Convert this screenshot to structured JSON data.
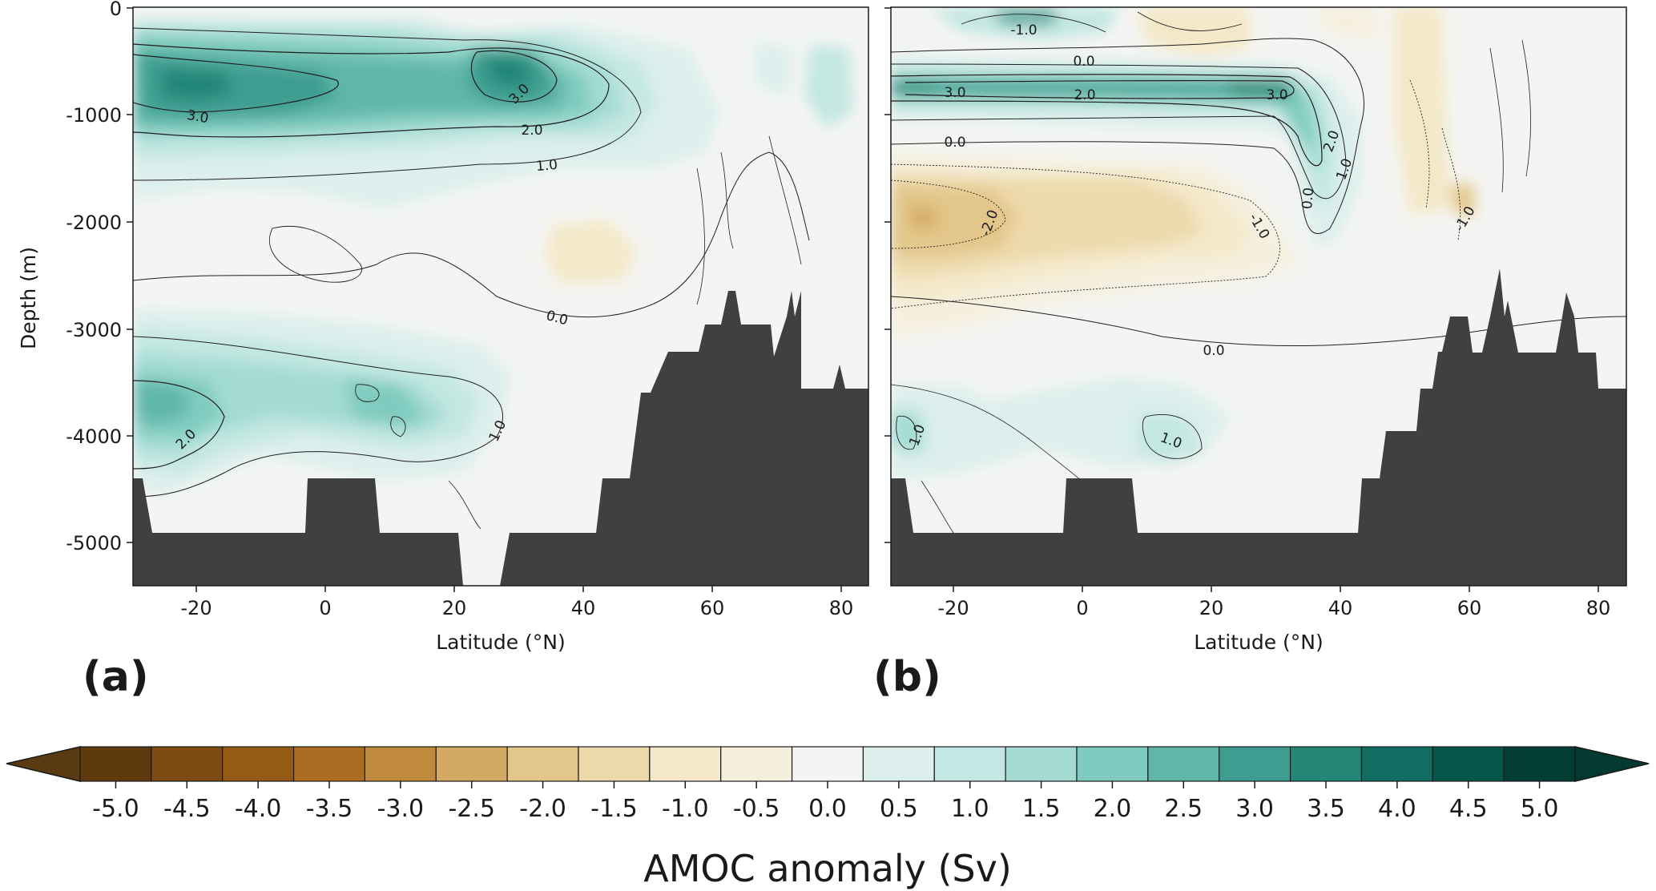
{
  "chart_data": [
    {
      "type": "contourf",
      "panel_label": "(a)",
      "xlabel": "Latitude (°N)",
      "ylabel": "Depth (m)",
      "xlim": [
        -30,
        84
      ],
      "ylim": [
        -5400,
        0
      ],
      "x_ticks": [
        "-20",
        "0",
        "20",
        "40",
        "60",
        "80"
      ],
      "y_ticks": [
        "0",
        "-1000",
        "-2000",
        "-3000",
        "-4000",
        "-5000"
      ],
      "contour_labels": [
        {
          "text": "3.0",
          "lat": -20,
          "depth": -1000
        },
        {
          "text": "3.0",
          "lat": 30,
          "depth": -750
        },
        {
          "text": "2.0",
          "lat": 33,
          "depth": -1120
        },
        {
          "text": "1.0",
          "lat": 34,
          "depth": -1470
        },
        {
          "text": "0.0",
          "lat": 37,
          "depth": -2900
        },
        {
          "text": "2.0",
          "lat": -22,
          "depth": -4000
        },
        {
          "text": "1.0",
          "lat": 27,
          "depth": -3960
        }
      ],
      "features": [
        {
          "name": "upper-cell-west",
          "lat": -16,
          "depth": -750,
          "value": 3.5
        },
        {
          "name": "upper-cell-east",
          "lat": 29,
          "depth": -600,
          "value": 3.5
        },
        {
          "name": "deep-cell-west",
          "lat": -23,
          "depth": -3700,
          "value": 2.5
        },
        {
          "name": "deep-cell-central",
          "lat": 8,
          "depth": -3700,
          "value": 2.0
        },
        {
          "name": "negative-patch",
          "lat": 38,
          "depth": -2300,
          "value": -0.5
        }
      ]
    },
    {
      "type": "contourf",
      "panel_label": "(b)",
      "xlabel": "Latitude (°N)",
      "ylabel": "",
      "xlim": [
        -30,
        84
      ],
      "ylim": [
        -5400,
        0
      ],
      "x_ticks": [
        "-20",
        "0",
        "20",
        "40",
        "60",
        "80"
      ],
      "y_ticks": [],
      "contour_labels": [
        {
          "text": "-1.0",
          "lat": -9,
          "depth": -200
        },
        {
          "text": "0.0",
          "lat": 0,
          "depth": -480
        },
        {
          "text": "3.0",
          "lat": -20,
          "depth": -780
        },
        {
          "text": "2.0",
          "lat": 0,
          "depth": -810
        },
        {
          "text": "3.0",
          "lat": 30,
          "depth": -810
        },
        {
          "text": "0.0",
          "lat": -20,
          "depth": -1250
        },
        {
          "text": "2.0",
          "lat": 39,
          "depth": -1250
        },
        {
          "text": "1.0",
          "lat": 41,
          "depth": -1500
        },
        {
          "text": "0.0",
          "lat": 37,
          "depth": -1770
        },
        {
          "text": "-2.0",
          "lat": -15,
          "depth": -2000
        },
        {
          "text": "-1.0",
          "lat": 27,
          "depth": -2050
        },
        {
          "text": "-1.0",
          "lat": 61,
          "depth": -1990
        },
        {
          "text": "0.0",
          "lat": 20,
          "depth": -3200
        },
        {
          "text": "1.0",
          "lat": -27,
          "depth": -4000
        },
        {
          "text": "1.0",
          "lat": 13,
          "depth": -4050
        }
      ],
      "features": [
        {
          "name": "upper-band",
          "lat": 5,
          "depth": -800,
          "value": 3.5
        },
        {
          "name": "negative-mid",
          "lat": -15,
          "depth": -2200,
          "value": -2.0
        },
        {
          "name": "deep-positive",
          "lat": 14,
          "depth": -3900,
          "value": 1.0
        }
      ]
    }
  ],
  "colorbar": {
    "title": "AMOC anomaly (Sv)",
    "levels": [
      "-5.0",
      "-4.5",
      "-4.0",
      "-3.5",
      "-3.0",
      "-2.5",
      "-2.0",
      "-1.5",
      "-1.0",
      "-0.5",
      "0.0",
      "0.5",
      "1.0",
      "1.5",
      "2.0",
      "2.5",
      "3.0",
      "3.5",
      "4.0",
      "4.5",
      "5.0"
    ],
    "colors": [
      "#5f3a0e",
      "#7e4b13",
      "#955a16",
      "#ac6d22",
      "#c08a3c",
      "#d4a962",
      "#e3c68a",
      "#ecd9aa",
      "#f4e8c8",
      "#f5efde",
      "#f4f5f3",
      "#dcefec",
      "#c3e7e2",
      "#a3dbd3",
      "#80cbbf",
      "#5fb6a9",
      "#3e9d90",
      "#248677",
      "#116d61",
      "#05554a",
      "#023d33"
    ],
    "extend_low": "#5a3a12",
    "extend_high": "#023a32",
    "land": "#404040"
  }
}
